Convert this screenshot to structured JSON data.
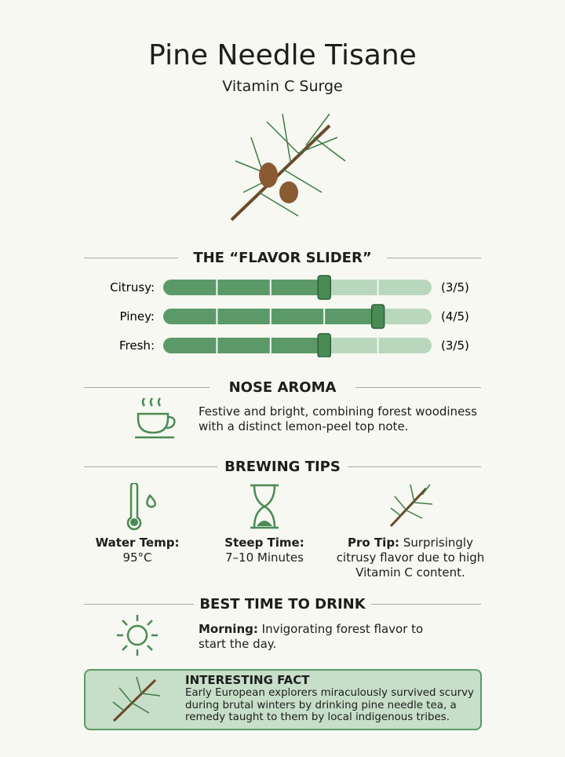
{
  "header": {
    "title": "Pine Needle Tisane",
    "subtitle": "Vitamin C Surge"
  },
  "flavor": {
    "heading": "THE “FLAVOR SLIDER”",
    "max": 5,
    "rows": [
      {
        "label": "Citrusy:",
        "value": 3,
        "value_label": "(3/5)"
      },
      {
        "label": "Piney:",
        "value": 4,
        "value_label": "(4/5)"
      },
      {
        "label": "Fresh:",
        "value": 3,
        "value_label": "(3/5)"
      }
    ]
  },
  "aroma": {
    "heading": "NOSE AROMA",
    "text": "Festive and bright, combining forest woodiness with a distinct lemon-peel top note."
  },
  "brewing": {
    "heading": "BREWING TIPS",
    "tips": [
      {
        "label": "Water Temp:",
        "text": "95°C"
      },
      {
        "label": "Steep Time:",
        "text": "7–10 Minutes"
      },
      {
        "label": "Pro Tip:",
        "text": "Surprisingly citrusy flavor due to high Vitamin C content."
      }
    ]
  },
  "best_time": {
    "heading": "BEST TIME TO DRINK",
    "label": "Morning:",
    "text": "Invigorating forest flavor to start the day."
  },
  "fact": {
    "heading": "INTERESTING FACT",
    "text": "Early European explorers miraculously survived scurvy during brutal winters by drinking pine needle tea, a remedy taught to them by local indigenous tribes."
  }
}
